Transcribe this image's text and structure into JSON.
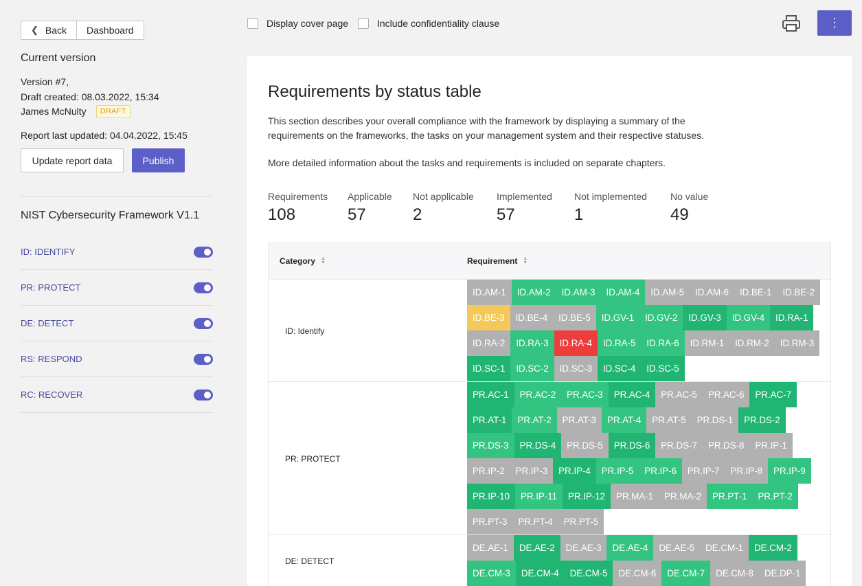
{
  "nav": {
    "back": "Back",
    "dashboard": "Dashboard"
  },
  "version": {
    "title": "Current version",
    "number": "Version #7,",
    "draft_created": "Draft created: 08.03.2022, 15:34",
    "author": "James McNulty",
    "badge": "DRAFT",
    "last_updated": "Report last updated: 04.04.2022, 15:45"
  },
  "actions": {
    "update": "Update report data",
    "publish": "Publish"
  },
  "framework": {
    "title": "NIST Cybersecurity Framework V1.1",
    "categories": [
      {
        "label": "ID: IDENTIFY",
        "enabled": true
      },
      {
        "label": "PR: PROTECT",
        "enabled": true
      },
      {
        "label": "DE: DETECT",
        "enabled": true
      },
      {
        "label": "RS: RESPOND",
        "enabled": true
      },
      {
        "label": "RC: RECOVER",
        "enabled": true
      }
    ]
  },
  "options": {
    "cover_page": "Display cover page",
    "confidentiality": "Include confidentiality clause"
  },
  "toolbar": {
    "print_icon": "printer-icon",
    "more_icon": "more-vertical-icon",
    "more_glyph": "⋮"
  },
  "section": {
    "title": "Requirements by status table",
    "description": "This section describes your overall compliance with the framework by displaying a summary of the requirements on the frameworks, the tasks on your management system and their respective statuses.",
    "description2": "More detailed information about the tasks and requirements is included on separate chapters."
  },
  "stats": [
    {
      "label": "Requirements",
      "value": "108"
    },
    {
      "label": "Applicable",
      "value": "57"
    },
    {
      "label": "Not applicable",
      "value": "2"
    },
    {
      "label": "Implemented",
      "value": "57"
    },
    {
      "label": "Not implemented",
      "value": "1"
    },
    {
      "label": "No value",
      "value": "49"
    }
  ],
  "table": {
    "col_category": "Category",
    "col_requirement": "Requirement",
    "status_colors": {
      "G": "#33c481",
      "L": "#5fd3a2",
      "D": "#21b573",
      "N": "#b1b1b1",
      "Y": "#f5c85a",
      "R": "#ee3d3d"
    },
    "rows": [
      {
        "category": "ID: Identify",
        "chips": [
          [
            "ID.AM-1",
            "N"
          ],
          [
            "ID.AM-2",
            "G"
          ],
          [
            "ID.AM-3",
            "G"
          ],
          [
            "ID.AM-4",
            "G"
          ],
          [
            "ID.AM-5",
            "N"
          ],
          [
            "ID.AM-6",
            "N"
          ],
          [
            "ID.BE-1",
            "N"
          ],
          [
            "ID.BE-2",
            "N"
          ],
          [
            "ID.BE-3",
            "Y"
          ],
          [
            "ID.BE-4",
            "N"
          ],
          [
            "ID.BE-5",
            "N"
          ],
          [
            "ID.GV-1",
            "G"
          ],
          [
            "ID.GV-2",
            "G"
          ],
          [
            "ID.GV-3",
            "D"
          ],
          [
            "ID.GV-4",
            "G"
          ],
          [
            "ID.RA-1",
            "D"
          ],
          [
            "ID.RA-2",
            "N"
          ],
          [
            "ID.RA-3",
            "G"
          ],
          [
            "ID.RA-4",
            "R"
          ],
          [
            "ID.RA-5",
            "G"
          ],
          [
            "ID.RA-6",
            "G"
          ],
          [
            "ID.RM-1",
            "N"
          ],
          [
            "ID.RM-2",
            "N"
          ],
          [
            "ID.RM-3",
            "N"
          ],
          [
            "ID.SC-1",
            "D"
          ],
          [
            "ID.SC-2",
            "G"
          ],
          [
            "ID.SC-3",
            "N"
          ],
          [
            "ID.SC-4",
            "D"
          ],
          [
            "ID.SC-5",
            "D"
          ]
        ]
      },
      {
        "category": "PR: PROTECT",
        "chips": [
          [
            "PR.AC-1",
            "D"
          ],
          [
            "PR.AC-2",
            "G"
          ],
          [
            "PR.AC-3",
            "G"
          ],
          [
            "PR.AC-4",
            "D"
          ],
          [
            "PR.AC-5",
            "N"
          ],
          [
            "PR.AC-6",
            "N"
          ],
          [
            "PR.AC-7",
            "D"
          ],
          [
            "PR.AT-1",
            "D"
          ],
          [
            "PR.AT-2",
            "G"
          ],
          [
            "PR.AT-3",
            "N"
          ],
          [
            "PR.AT-4",
            "G"
          ],
          [
            "PR.AT-5",
            "N"
          ],
          [
            "PR.DS-1",
            "N"
          ],
          [
            "PR.DS-2",
            "D"
          ],
          [
            "PR.DS-3",
            "G"
          ],
          [
            "PR.DS-4",
            "D"
          ],
          [
            "PR.DS-5",
            "N"
          ],
          [
            "PR.DS-6",
            "D"
          ],
          [
            "PR.DS-7",
            "N"
          ],
          [
            "PR.DS-8",
            "N"
          ],
          [
            "PR.IP-1",
            "N"
          ],
          [
            "PR.IP-2",
            "N"
          ],
          [
            "PR.IP-3",
            "N"
          ],
          [
            "PR.IP-4",
            "D"
          ],
          [
            "PR.IP-5",
            "G"
          ],
          [
            "PR.IP-6",
            "G"
          ],
          [
            "PR.IP-7",
            "N"
          ],
          [
            "PR.IP-8",
            "N"
          ],
          [
            "PR.IP-9",
            "G"
          ],
          [
            "PR.IP-10",
            "D"
          ],
          [
            "PR.IP-11",
            "G"
          ],
          [
            "PR.IP-12",
            "D"
          ],
          [
            "PR.MA-1",
            "N"
          ],
          [
            "PR.MA-2",
            "N"
          ],
          [
            "PR.PT-1",
            "G"
          ],
          [
            "PR.PT-2",
            "G"
          ],
          [
            "PR.PT-3",
            "N"
          ],
          [
            "PR.PT-4",
            "N"
          ],
          [
            "PR.PT-5",
            "N"
          ]
        ]
      },
      {
        "category": "DE: DETECT",
        "chips": [
          [
            "DE.AE-1",
            "N"
          ],
          [
            "DE.AE-2",
            "D"
          ],
          [
            "DE.AE-3",
            "N"
          ],
          [
            "DE.AE-4",
            "G"
          ],
          [
            "DE.AE-5",
            "N"
          ],
          [
            "DE.CM-1",
            "N"
          ],
          [
            "DE.CM-2",
            "D"
          ],
          [
            "DE.CM-3",
            "G"
          ],
          [
            "DE.CM-4",
            "D"
          ],
          [
            "DE.CM-5",
            "D"
          ],
          [
            "DE.CM-6",
            "N"
          ],
          [
            "DE.CM-7",
            "G"
          ],
          [
            "DE.CM-8",
            "N"
          ],
          [
            "DE.DP-1",
            "N"
          ]
        ]
      }
    ]
  }
}
